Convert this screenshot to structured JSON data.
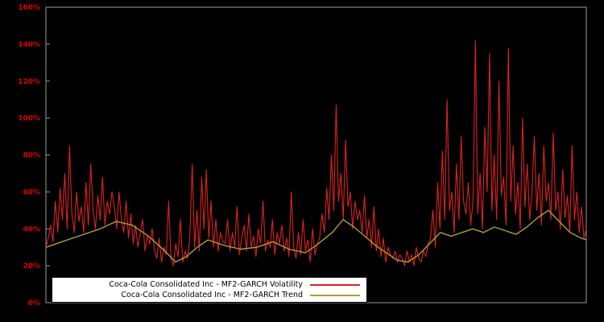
{
  "page": {
    "background": "#000000"
  },
  "plot": {
    "background": "#000000",
    "border_color": "#9a9a9a"
  },
  "axes": {
    "y_ticks": [
      "0%",
      "20%",
      "40%",
      "60%",
      "80%",
      "100%",
      "120%",
      "140%",
      "160%"
    ],
    "y_tick_values": [
      0,
      20,
      40,
      60,
      80,
      100,
      120,
      140,
      160
    ],
    "y_label_color": "#dd0000",
    "y_max": 160
  },
  "legend": {
    "background": "#ffffff",
    "border_color": "#000000",
    "items": [
      {
        "label": "Coca-Cola Consolidated Inc - MF2-GARCH Volatility",
        "color": "#dd2222"
      },
      {
        "label": "Coca-Cola Consolidated Inc - MF2-GARCH Trend",
        "color": "#b0a030"
      }
    ]
  },
  "chart_data": {
    "type": "line",
    "title": "",
    "xlabel": "",
    "ylabel": "",
    "ylim": [
      0,
      160
    ],
    "y_unit": "%",
    "grid": false,
    "legend_position": "bottom-left",
    "series": [
      {
        "name": "Coca-Cola Consolidated Inc - MF2-GARCH Volatility",
        "color": "#dd2222",
        "values": [
          30,
          35,
          42,
          33,
          55,
          38,
          62,
          45,
          70,
          40,
          85,
          48,
          38,
          60,
          44,
          52,
          38,
          65,
          42,
          75,
          50,
          40,
          58,
          45,
          68,
          42,
          55,
          48,
          60,
          52,
          40,
          60,
          45,
          38,
          55,
          35,
          48,
          32,
          42,
          30,
          38,
          45,
          28,
          36,
          32,
          40,
          28,
          24,
          35,
          22,
          30,
          26,
          55,
          24,
          20,
          32,
          25,
          45,
          22,
          28,
          24,
          35,
          75,
          30,
          50,
          28,
          68,
          40,
          72,
          35,
          55,
          30,
          45,
          28,
          38,
          33,
          32,
          45,
          28,
          38,
          30,
          52,
          26,
          35,
          42,
          28,
          48,
          30,
          36,
          25,
          40,
          32,
          55,
          28,
          34,
          30,
          45,
          26,
          38,
          32,
          42,
          28,
          35,
          25,
          60,
          30,
          24,
          38,
          26,
          45,
          28,
          34,
          22,
          40,
          26,
          32,
          35,
          48,
          38,
          62,
          45,
          80,
          50,
          107,
          55,
          70,
          45,
          88,
          52,
          60,
          40,
          55,
          45,
          50,
          38,
          58,
          35,
          45,
          30,
          52,
          28,
          40,
          25,
          35,
          22,
          30,
          26,
          24,
          28,
          22,
          26,
          24,
          20,
          28,
          22,
          26,
          20,
          30,
          24,
          22,
          28,
          25,
          32,
          35,
          50,
          30,
          65,
          40,
          82,
          45,
          110,
          50,
          60,
          38,
          75,
          45,
          90,
          55,
          48,
          65,
          42,
          55,
          142,
          48,
          70,
          40,
          95,
          60,
          135,
          50,
          80,
          45,
          120,
          58,
          68,
          42,
          138,
          55,
          85,
          48,
          65,
          40,
          100,
          52,
          75,
          45,
          60,
          90,
          50,
          70,
          42,
          85,
          55,
          65,
          45,
          92,
          50,
          60,
          40,
          72,
          46,
          58,
          38,
          85,
          45,
          60,
          38,
          52,
          35,
          40
        ]
      },
      {
        "name": "Coca-Cola Consolidated Inc - MF2-GARCH Trend",
        "color": "#b0a030",
        "points": [
          [
            0,
            30
          ],
          [
            3,
            33
          ],
          [
            6,
            36
          ],
          [
            10,
            40
          ],
          [
            13,
            44
          ],
          [
            16,
            42
          ],
          [
            19,
            36
          ],
          [
            22,
            28
          ],
          [
            24,
            22
          ],
          [
            26,
            25
          ],
          [
            28,
            30
          ],
          [
            30,
            34
          ],
          [
            33,
            31
          ],
          [
            36,
            29
          ],
          [
            39,
            30
          ],
          [
            42,
            33
          ],
          [
            45,
            29
          ],
          [
            48,
            27
          ],
          [
            50,
            31
          ],
          [
            53,
            38
          ],
          [
            55,
            45
          ],
          [
            57,
            41
          ],
          [
            59,
            36
          ],
          [
            61,
            31
          ],
          [
            63,
            27
          ],
          [
            65,
            23
          ],
          [
            67,
            22
          ],
          [
            69,
            26
          ],
          [
            71,
            32
          ],
          [
            73,
            38
          ],
          [
            75,
            36
          ],
          [
            77,
            38
          ],
          [
            79,
            40
          ],
          [
            81,
            38
          ],
          [
            83,
            41
          ],
          [
            85,
            39
          ],
          [
            87,
            37
          ],
          [
            89,
            41
          ],
          [
            91,
            46
          ],
          [
            93,
            50
          ],
          [
            95,
            44
          ],
          [
            97,
            38
          ],
          [
            99,
            35
          ],
          [
            100,
            34
          ]
        ]
      }
    ]
  }
}
